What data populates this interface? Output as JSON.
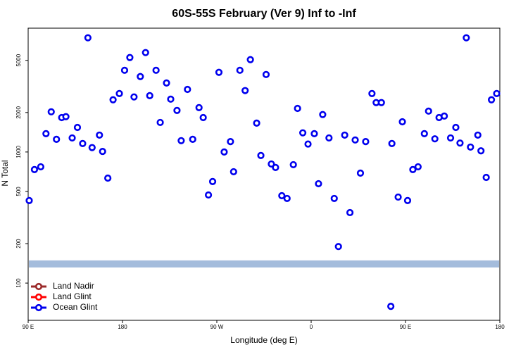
{
  "chart_data": {
    "type": "scatter",
    "title": "60S-55S February (Ver 9)   Inf to -Inf",
    "xlabel": "Longitude (deg E)",
    "ylabel": "N Total",
    "xlim": [
      90,
      540
    ],
    "xticks": [
      {
        "value": 90,
        "label": "90 E"
      },
      {
        "value": 180,
        "label": "180"
      },
      {
        "value": 270,
        "label": "90 W"
      },
      {
        "value": 360,
        "label": "0"
      },
      {
        "value": 450,
        "label": "90 E"
      },
      {
        "value": 540,
        "label": "180"
      }
    ],
    "ylim": [
      52,
      8800
    ],
    "yscale": "log",
    "yticks": [
      100,
      200,
      500,
      1000,
      2000,
      5000
    ],
    "x": [
      91,
      96,
      102,
      107,
      112,
      117,
      122,
      126,
      132,
      137,
      142,
      147,
      151,
      158,
      161,
      166,
      171,
      177,
      182,
      187,
      191,
      197,
      202,
      206,
      212,
      216,
      222,
      226,
      232,
      236,
      242,
      247,
      253,
      257,
      262,
      266,
      272,
      277,
      283,
      286,
      292,
      297,
      302,
      308,
      312,
      317,
      322,
      326,
      332,
      337,
      343,
      347,
      352,
      357,
      363,
      367,
      371,
      377,
      382,
      386,
      392,
      397,
      402,
      407,
      412,
      418,
      422,
      427,
      436,
      437,
      443,
      447,
      452,
      457,
      462,
      468,
      472,
      478,
      482,
      487,
      493,
      498,
      502,
      508,
      512,
      519,
      522,
      527,
      532,
      537
    ],
    "series": [
      {
        "name": "Ocean Glint",
        "color": "#0000ee",
        "values": [
          426,
          734,
          771,
          1380,
          2025,
          1250,
          1830,
          1860,
          1280,
          1540,
          1160,
          7430,
          1080,
          1345,
          1010,
          632,
          2500,
          2790,
          4200,
          5250,
          2630,
          3760,
          5730,
          2690,
          4200,
          1680,
          3360,
          2530,
          2075,
          1220,
          3000,
          1250,
          2180,
          1830,
          470,
          595,
          4050,
          1000,
          1200,
          707,
          4200,
          2940,
          5060,
          1660,
          940,
          3900,
          810,
          762,
          464,
          442,
          800,
          2150,
          1400,
          1150,
          1380,
          573,
          1930,
          1280,
          442,
          190,
          1345,
          345,
          1235,
          690,
          1200,
          2790,
          2380,
          2380,
          66.5,
          1160,
          453,
          1700,
          426,
          734,
          771,
          1380,
          2050,
          1260,
          1830,
          1880,
          1280,
          1540,
          1170,
          7430,
          1090,
          1345,
          1020,
          640,
          2500,
          2790
        ]
      }
    ],
    "legend": [
      {
        "name": "Land Nadir",
        "color": "#9b2a2a"
      },
      {
        "name": "Land Glint",
        "color": "#ff0000"
      },
      {
        "name": "Ocean Glint",
        "color": "#0000ee"
      }
    ],
    "legend_position": "lower left",
    "band": {
      "value": 140,
      "color": "#a4bcdc"
    }
  }
}
